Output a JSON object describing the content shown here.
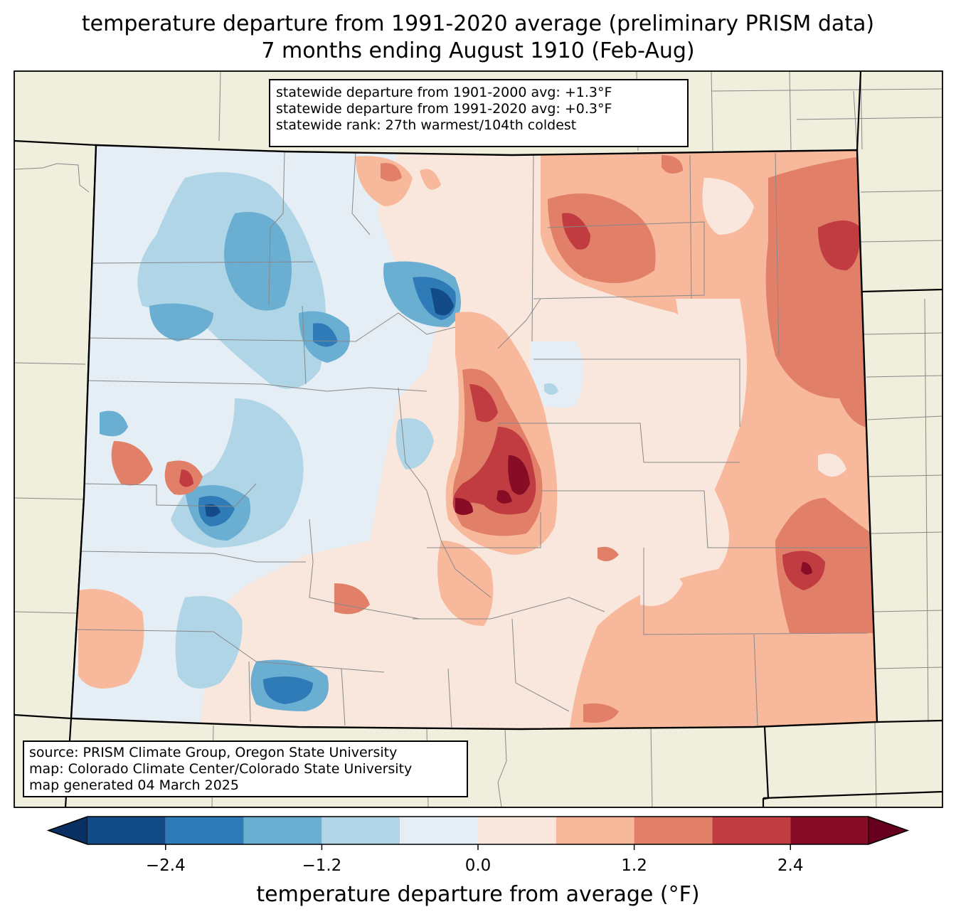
{
  "title": {
    "line1": "temperature departure from 1991-2020 average (preliminary PRISM data)",
    "line2": "7 months ending August 1910 (Feb-Aug)"
  },
  "stats_box": {
    "line1": "statewide departure from 1901-2000 avg: +1.3°F",
    "line2": "statewide departure from 1991-2020 avg: +0.3°F",
    "line3": "statewide rank: 27th warmest/104th coldest"
  },
  "source_box": {
    "line1": "source: PRISM Climate Group, Oregon State University",
    "line2": "map: Colorado Climate Center/Colorado State University",
    "line3": "map generated 04 March 2025"
  },
  "colorbar": {
    "label": "temperature departure from average (°F)",
    "ticks": [
      {
        "value": -2.4,
        "label": "−2.4"
      },
      {
        "value": -1.2,
        "label": "−1.2"
      },
      {
        "value": 0.0,
        "label": "0.0"
      },
      {
        "value": 1.2,
        "label": "1.2"
      },
      {
        "value": 2.4,
        "label": "2.4"
      }
    ],
    "range": [
      -3.0,
      3.0
    ],
    "bins": [
      {
        "from": -3.0,
        "to": -2.4,
        "color": "#134b88"
      },
      {
        "from": -2.4,
        "to": -1.8,
        "color": "#2e7bb7"
      },
      {
        "from": -1.8,
        "to": -1.2,
        "color": "#6aaed2"
      },
      {
        "from": -1.2,
        "to": -0.6,
        "color": "#b0d5e6"
      },
      {
        "from": -0.6,
        "to": 0.0,
        "color": "#e5eef4"
      },
      {
        "from": 0.0,
        "to": 0.6,
        "color": "#f9e7de"
      },
      {
        "from": 0.6,
        "to": 1.2,
        "color": "#f7b89c"
      },
      {
        "from": 1.2,
        "to": 1.8,
        "color": "#e27f68"
      },
      {
        "from": 1.8,
        "to": 2.4,
        "color": "#c13c41"
      },
      {
        "from": 2.4,
        "to": 3.0,
        "color": "#870d26"
      }
    ],
    "under_color": "#0a3063",
    "over_color": "#67001f"
  },
  "map_colors": {
    "land": "#f0eedc",
    "state_border": "#000000",
    "county_border": "#888888"
  }
}
